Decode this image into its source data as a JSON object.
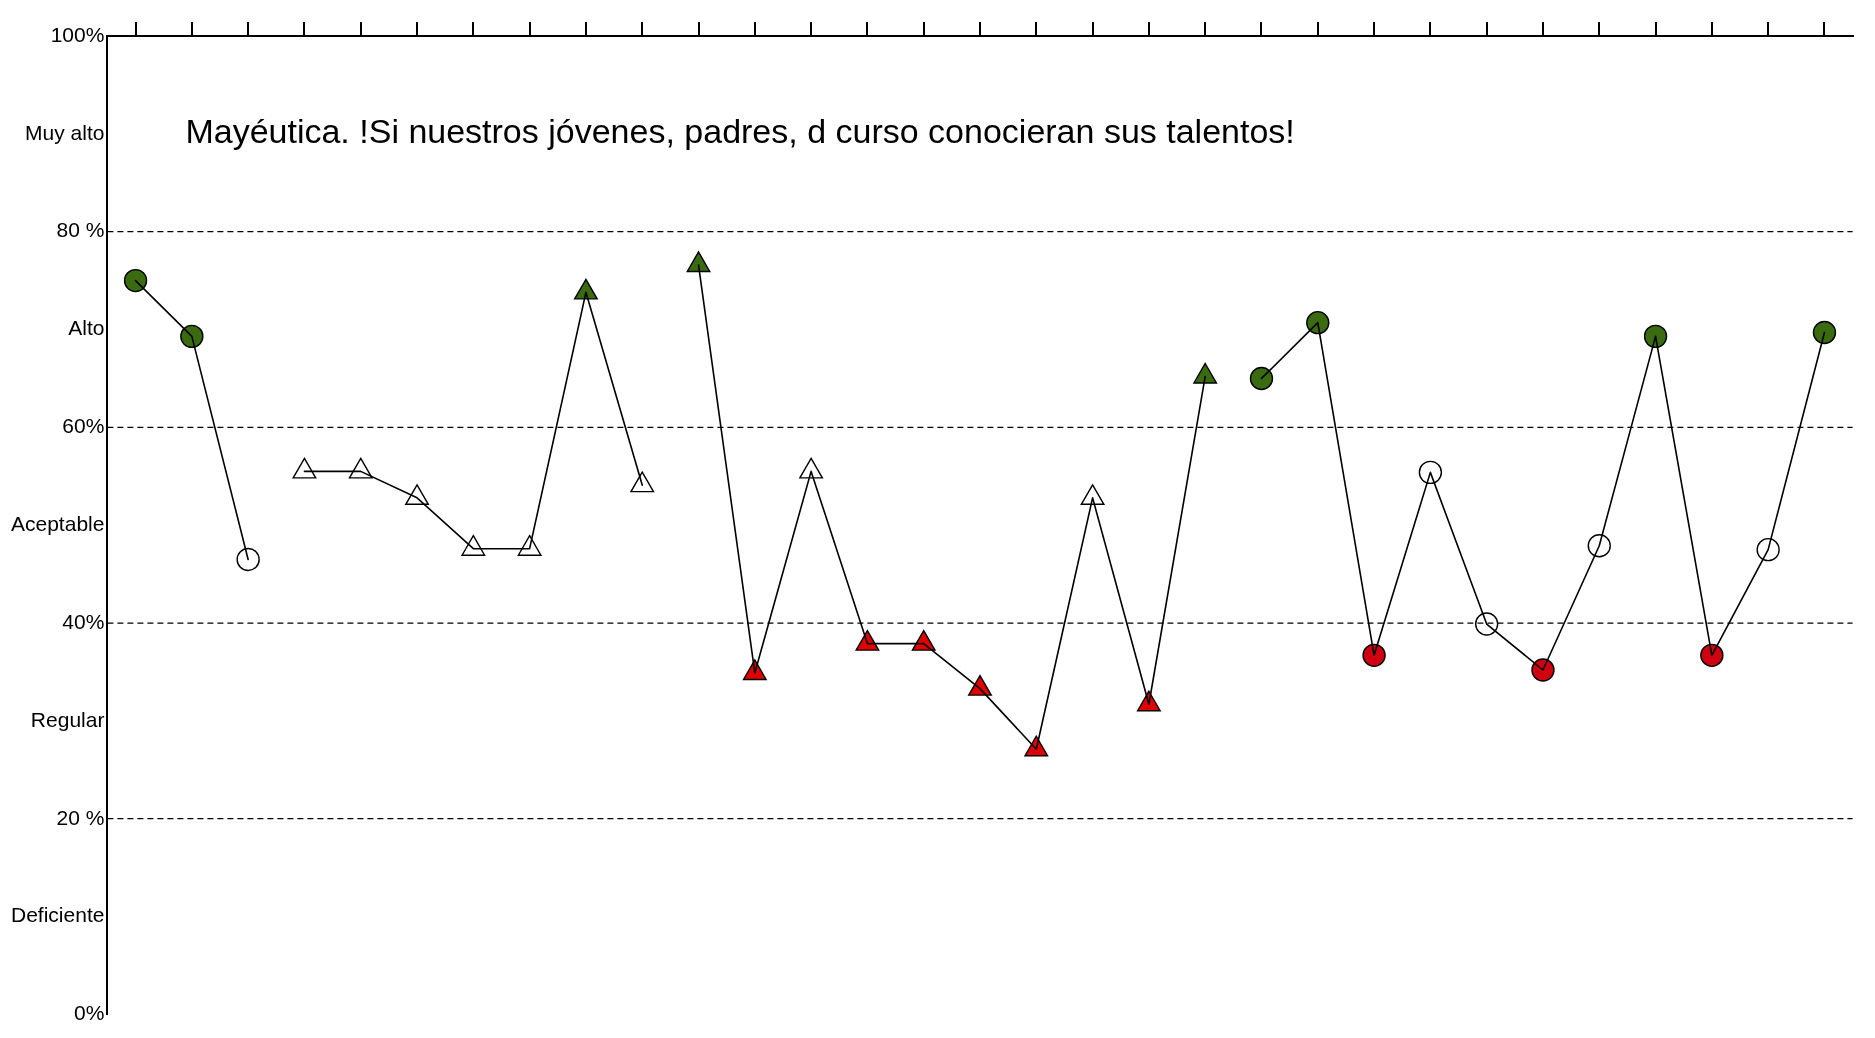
{
  "chart_data": {
    "type": "line",
    "title": "Mayéutica. !Si nuestros jóvenes, padres, d curso conocieran sus talentos!",
    "categories": [
      null,
      null,
      null,
      null,
      null,
      null,
      null,
      null,
      null,
      null,
      null,
      null,
      null,
      null,
      null,
      null,
      null,
      null,
      null,
      null,
      null,
      null,
      null,
      null,
      null,
      null,
      null,
      null,
      null,
      null,
      null
    ],
    "series": [
      {
        "color": "#000000",
        "marker": "circle",
        "values": [
          75.0,
          69.3,
          46.5,
          null,
          null,
          null,
          null,
          null,
          null,
          null,
          null,
          null,
          null,
          null,
          null,
          null,
          null,
          null,
          null,
          null,
          null,
          null,
          null,
          null,
          null,
          null,
          null,
          null,
          null,
          null,
          null
        ],
        "colors": [
          "#3a6b10",
          "#3a6b10",
          "#ffffff",
          null,
          null,
          null,
          null,
          null,
          null,
          null,
          null,
          null,
          null,
          null,
          null,
          null,
          null,
          null,
          null,
          null,
          null,
          null,
          null,
          null,
          null,
          null,
          null,
          null,
          null,
          null,
          null
        ]
      },
      {
        "color": "#000000",
        "marker": "triangle",
        "values": [
          null,
          null,
          null,
          55.5,
          55.5,
          52.8,
          47.6,
          47.6,
          73.8,
          54.1,
          null,
          null,
          null,
          null,
          null,
          null,
          null,
          null,
          null,
          null,
          null,
          null,
          null,
          null,
          null,
          null,
          null,
          null,
          null,
          null,
          null
        ],
        "colors": [
          null,
          null,
          null,
          "#ffffff",
          "#ffffff",
          "#ffffff",
          "#ffffff",
          "#ffffff",
          "#3a6b10",
          "#ffffff",
          null,
          null,
          null,
          null,
          null,
          null,
          null,
          null,
          null,
          null,
          null,
          null,
          null,
          null,
          null,
          null,
          null,
          null,
          null,
          null,
          null
        ]
      },
      {
        "color": "#000000",
        "marker": "triangle",
        "values": [
          null,
          null,
          null,
          null,
          null,
          null,
          null,
          null,
          null,
          null,
          76.6,
          34.9,
          55.5,
          37.9,
          37.9,
          33.3,
          27.1,
          52.8,
          31.7,
          65.2,
          null,
          null,
          null,
          null,
          null,
          null,
          null,
          null,
          null,
          null,
          null
        ],
        "colors": [
          null,
          null,
          null,
          null,
          null,
          null,
          null,
          null,
          null,
          null,
          "#3a6b10",
          "#e00000",
          "#ffffff",
          "#e00000",
          "#e00000",
          "#e00000",
          "#e00000",
          "#ffffff",
          "#e00000",
          "#3a6b10",
          null,
          null,
          null,
          null,
          null,
          null,
          null,
          null,
          null,
          null,
          null
        ]
      },
      {
        "color": "#000000",
        "marker": "circle",
        "values": [
          null,
          null,
          null,
          null,
          null,
          null,
          null,
          null,
          null,
          null,
          null,
          null,
          null,
          null,
          null,
          null,
          null,
          null,
          null,
          null,
          65.0,
          70.7,
          36.7,
          55.4,
          39.9,
          35.2,
          47.9,
          69.3,
          36.7,
          47.5,
          69.7
        ],
        "colors": [
          null,
          null,
          null,
          null,
          null,
          null,
          null,
          null,
          null,
          null,
          null,
          null,
          null,
          null,
          null,
          null,
          null,
          null,
          null,
          null,
          "#3a6b10",
          "#3a6b10",
          "#d00010",
          "#ffffff",
          "#ffffff",
          "#d00010",
          "#ffffff",
          "#3a6b10",
          "#d00010",
          "#ffffff",
          "#3a6b10"
        ]
      }
    ],
    "ylim": [
      0,
      100
    ],
    "yticks": [
      {
        "value": 0,
        "label": "0%"
      },
      {
        "value": 10,
        "label": "Deficiente"
      },
      {
        "value": 20,
        "label": "20 %"
      },
      {
        "value": 30,
        "label": "Regular"
      },
      {
        "value": 40,
        "label": "40%"
      },
      {
        "value": 50,
        "label": "Aceptable"
      },
      {
        "value": 60,
        "label": "60%"
      },
      {
        "value": 70,
        "label": "Alto"
      },
      {
        "value": 80,
        "label": "80 %"
      },
      {
        "value": 90,
        "label": "Muy alto"
      },
      {
        "value": 100,
        "label": "100%"
      }
    ],
    "ref_lines": [
      {
        "axis": "y",
        "value": 20,
        "line_style": "dashed",
        "color": "#000000"
      },
      {
        "axis": "y",
        "value": 40,
        "line_style": "dashed",
        "color": "#000000"
      },
      {
        "axis": "y",
        "value": 60,
        "line_style": "dashed",
        "color": "#000000"
      },
      {
        "axis": "y",
        "value": 80,
        "line_style": "dashed",
        "color": "#000000"
      }
    ],
    "tick_labels": "y",
    "grid": false,
    "legend": false,
    "line_style": "solid"
  }
}
